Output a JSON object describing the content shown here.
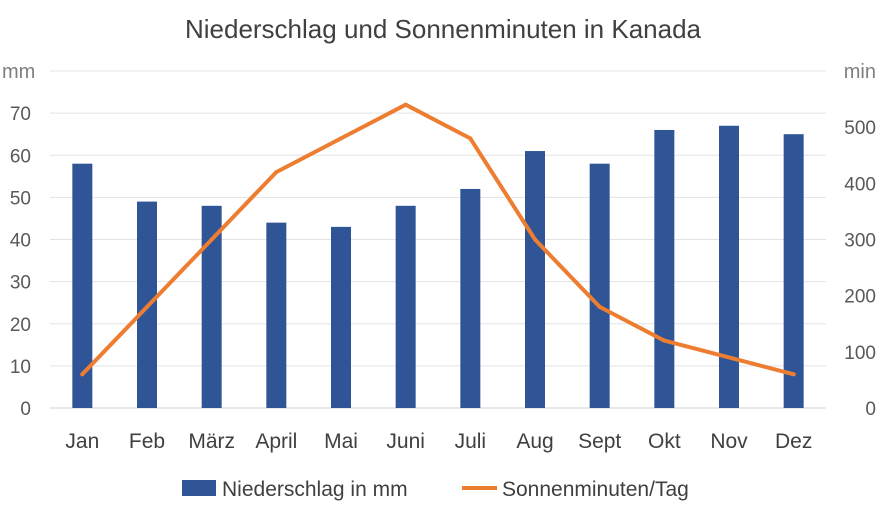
{
  "chart_data": {
    "type": "bar",
    "title": "Niederschlag und Sonnenminuten in Kanada",
    "categories": [
      "Jan",
      "Feb",
      "März",
      "April",
      "Mai",
      "Juni",
      "Juli",
      "Aug",
      "Sept",
      "Okt",
      "Nov",
      "Dez"
    ],
    "series": [
      {
        "name": "Niederschlag in mm",
        "type": "bar",
        "axis": "left",
        "color": "#2f5597",
        "values": [
          58,
          49,
          48,
          44,
          43,
          48,
          52,
          61,
          58,
          66,
          67,
          65
        ]
      },
      {
        "name": "Sonnenminuten/Tag",
        "type": "line",
        "axis": "right",
        "color": "#ed7d31",
        "values": [
          60,
          180,
          300,
          420,
          480,
          540,
          480,
          300,
          180,
          120,
          90,
          60
        ]
      }
    ],
    "y_left": {
      "label": "mm",
      "ylim": [
        0,
        80
      ],
      "ticks": [
        0,
        10,
        20,
        30,
        40,
        50,
        60,
        70
      ]
    },
    "y_right": {
      "label": "min",
      "ylim": [
        0,
        600
      ],
      "ticks": [
        0,
        100,
        200,
        300,
        400,
        500
      ]
    },
    "grid": true,
    "legend": "bottom"
  }
}
